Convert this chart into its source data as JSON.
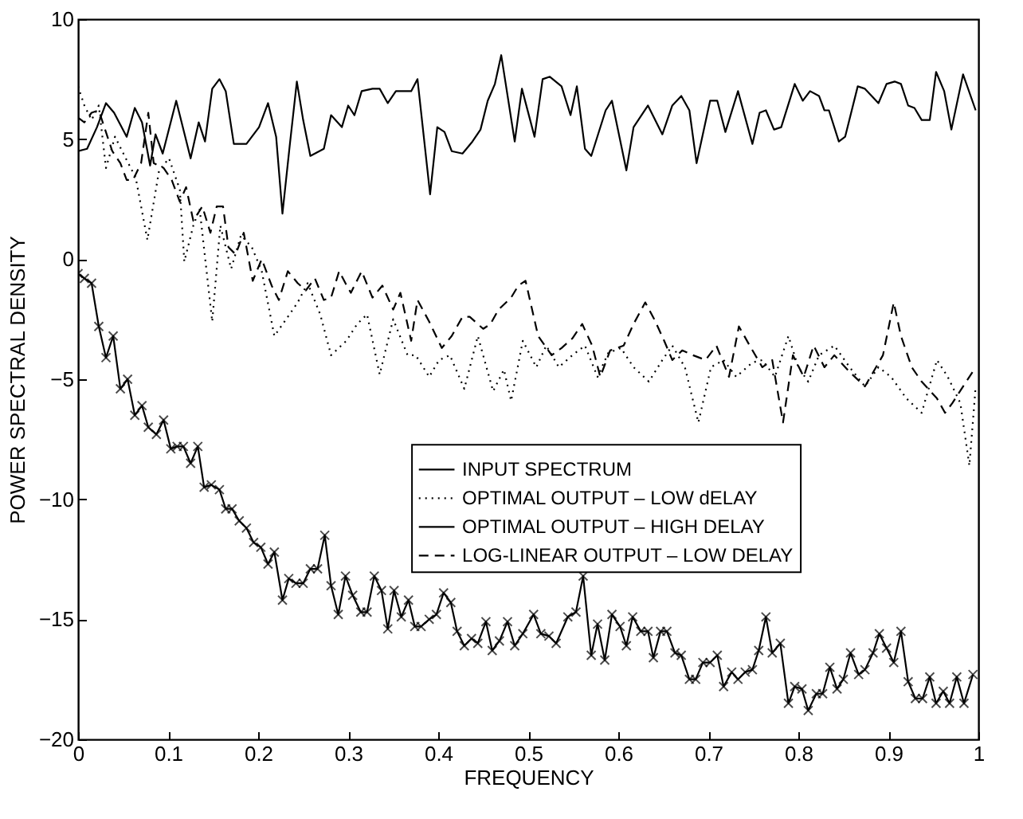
{
  "chart_data": {
    "type": "line",
    "xlabel": "FREQUENCY",
    "ylabel": "POWER SPECTRAL DENSITY",
    "xlim": [
      0,
      1
    ],
    "ylim": [
      -20,
      10
    ],
    "xticks": [
      0,
      0.1,
      0.2,
      0.3,
      0.4,
      0.5,
      0.6,
      0.7,
      0.8,
      0.9,
      1
    ],
    "yticks": [
      -20,
      -15,
      -10,
      -5,
      0,
      5,
      10
    ],
    "grid": false,
    "legend": "right",
    "series": [
      {
        "name": "INPUT SPECTRUM",
        "color": "#000000",
        "line_style": "solid",
        "marker": "none",
        "x": [
          0,
          0.01,
          0.021,
          0.031,
          0.04,
          0.054,
          0.063,
          0.071,
          0.08,
          0.086,
          0.094,
          0.109,
          0.125,
          0.134,
          0.141,
          0.149,
          0.157,
          0.164,
          0.173,
          0.187,
          0.201,
          0.211,
          0.22,
          0.227,
          0.235,
          0.243,
          0.25,
          0.258,
          0.273,
          0.281,
          0.293,
          0.3,
          0.307,
          0.315,
          0.327,
          0.335,
          0.344,
          0.353,
          0.37,
          0.377,
          0.391,
          0.399,
          0.407,
          0.415,
          0.427,
          0.438,
          0.447,
          0.455,
          0.463,
          0.47,
          0.485,
          0.493,
          0.507,
          0.516,
          0.524,
          0.537,
          0.547,
          0.554,
          0.563,
          0.57,
          0.586,
          0.593,
          0.609,
          0.617,
          0.633,
          0.649,
          0.66,
          0.67,
          0.679,
          0.687,
          0.702,
          0.71,
          0.719,
          0.733,
          0.749,
          0.757,
          0.764,
          0.773,
          0.781,
          0.796,
          0.805,
          0.813,
          0.823,
          0.829,
          0.834,
          0.845,
          0.852,
          0.866,
          0.874,
          0.889,
          0.898,
          0.907,
          0.914,
          0.922,
          0.929,
          0.937,
          0.946,
          0.953,
          0.962,
          0.97,
          0.983,
          0.997
        ],
        "values": [
          4.5,
          4.6,
          5.5,
          6.5,
          6.1,
          5.1,
          6.3,
          5.7,
          3.9,
          5.2,
          4.4,
          6.6,
          4.2,
          5.7,
          4.9,
          7.1,
          7.5,
          7.0,
          4.8,
          4.8,
          5.5,
          6.5,
          5.1,
          1.9,
          4.7,
          7.4,
          5.8,
          4.3,
          4.6,
          6.0,
          5.5,
          6.4,
          6.0,
          7.0,
          7.1,
          7.1,
          6.5,
          7.0,
          7.0,
          7.5,
          2.7,
          5.5,
          5.3,
          4.5,
          4.4,
          4.9,
          5.4,
          6.6,
          7.3,
          8.5,
          4.9,
          7.1,
          5.1,
          7.5,
          7.6,
          7.2,
          6.0,
          7.2,
          4.6,
          4.3,
          6.2,
          6.6,
          3.7,
          5.5,
          6.4,
          5.2,
          6.4,
          6.8,
          6.2,
          4.0,
          6.6,
          6.6,
          5.3,
          7.0,
          4.8,
          6.1,
          6.2,
          5.4,
          5.5,
          7.3,
          6.6,
          7.0,
          6.8,
          6.2,
          6.2,
          4.9,
          5.1,
          7.2,
          7.1,
          6.5,
          7.3,
          7.4,
          7.3,
          6.4,
          6.3,
          5.8,
          5.8,
          7.8,
          7.0,
          5.4,
          7.7,
          6.2
        ]
      },
      {
        "name": "OPTIMAL OUTPUT – LOW dELAY",
        "color": "#000000",
        "line_style": "dotted",
        "marker": "none",
        "x": [
          0,
          0.007,
          0.015,
          0.023,
          0.031,
          0.041,
          0.053,
          0.064,
          0.077,
          0.09,
          0.101,
          0.113,
          0.118,
          0.128,
          0.135,
          0.149,
          0.158,
          0.17,
          0.181,
          0.193,
          0.204,
          0.218,
          0.233,
          0.244,
          0.255,
          0.269,
          0.281,
          0.298,
          0.31,
          0.321,
          0.335,
          0.35,
          0.366,
          0.375,
          0.39,
          0.401,
          0.413,
          0.429,
          0.444,
          0.461,
          0.473,
          0.481,
          0.494,
          0.509,
          0.52,
          0.534,
          0.549,
          0.563,
          0.577,
          0.589,
          0.603,
          0.617,
          0.634,
          0.649,
          0.66,
          0.674,
          0.689,
          0.703,
          0.717,
          0.731,
          0.749,
          0.76,
          0.774,
          0.789,
          0.8,
          0.811,
          0.823,
          0.84,
          0.857,
          0.874,
          0.889,
          0.903,
          0.92,
          0.937,
          0.954,
          0.966,
          0.98,
          0.99,
          0.997
        ],
        "values": [
          7.2,
          6.4,
          5.8,
          6.4,
          3.8,
          5.1,
          4.2,
          3.4,
          0.8,
          3.7,
          4.2,
          2.9,
          -0.1,
          1.4,
          2.1,
          -2.6,
          1.4,
          -0.4,
          1.0,
          0.5,
          -0.5,
          -3.2,
          -2.4,
          -1.8,
          -1.0,
          -2.3,
          -4.0,
          -3.4,
          -2.7,
          -2.3,
          -4.8,
          -2.5,
          -4.0,
          -4.0,
          -4.9,
          -4.2,
          -4.0,
          -5.4,
          -3.2,
          -5.5,
          -4.6,
          -5.9,
          -3.4,
          -4.5,
          -3.6,
          -4.5,
          -4.0,
          -3.6,
          -4.9,
          -3.9,
          -3.7,
          -4.5,
          -5.1,
          -4.2,
          -3.6,
          -4.5,
          -6.8,
          -4.5,
          -4.2,
          -4.9,
          -4.3,
          -4.2,
          -4.9,
          -3.2,
          -4.5,
          -5.1,
          -4.0,
          -3.6,
          -4.5,
          -5.3,
          -4.5,
          -4.9,
          -5.8,
          -6.4,
          -4.2,
          -4.9,
          -6.0,
          -8.6,
          -5.3
        ]
      },
      {
        "name": "OPTIMAL OUTPUT – HIGH DELAY",
        "color": "#000000",
        "line_style": "solid",
        "marker": "cross",
        "x": [
          0,
          0.007,
          0.015,
          0.023,
          0.031,
          0.039,
          0.047,
          0.055,
          0.063,
          0.071,
          0.078,
          0.087,
          0.095,
          0.103,
          0.11,
          0.117,
          0.125,
          0.133,
          0.14,
          0.148,
          0.157,
          0.164,
          0.171,
          0.179,
          0.187,
          0.195,
          0.203,
          0.211,
          0.218,
          0.227,
          0.234,
          0.242,
          0.25,
          0.258,
          0.266,
          0.274,
          0.281,
          0.289,
          0.297,
          0.305,
          0.314,
          0.321,
          0.329,
          0.337,
          0.344,
          0.351,
          0.359,
          0.367,
          0.374,
          0.381,
          0.39,
          0.398,
          0.406,
          0.414,
          0.421,
          0.429,
          0.437,
          0.444,
          0.453,
          0.46,
          0.468,
          0.477,
          0.485,
          0.494,
          0.506,
          0.514,
          0.523,
          0.531,
          0.544,
          0.553,
          0.561,
          0.57,
          0.577,
          0.585,
          0.593,
          0.602,
          0.609,
          0.616,
          0.625,
          0.633,
          0.639,
          0.647,
          0.654,
          0.663,
          0.67,
          0.679,
          0.686,
          0.694,
          0.702,
          0.71,
          0.717,
          0.726,
          0.733,
          0.741,
          0.749,
          0.756,
          0.764,
          0.771,
          0.78,
          0.789,
          0.796,
          0.804,
          0.811,
          0.82,
          0.827,
          0.835,
          0.843,
          0.85,
          0.858,
          0.867,
          0.874,
          0.883,
          0.89,
          0.898,
          0.906,
          0.914,
          0.922,
          0.93,
          0.938,
          0.946,
          0.953,
          0.961,
          0.968,
          0.976,
          0.984,
          0.994
        ],
        "values": [
          -0.6,
          -0.8,
          -1.0,
          -2.8,
          -4.1,
          -3.2,
          -5.4,
          -5.0,
          -6.5,
          -6.1,
          -7.0,
          -7.3,
          -6.7,
          -7.9,
          -7.8,
          -7.8,
          -8.5,
          -7.8,
          -9.5,
          -9.4,
          -9.6,
          -10.4,
          -10.4,
          -10.9,
          -11.2,
          -11.8,
          -12.0,
          -12.7,
          -12.2,
          -14.2,
          -13.3,
          -13.5,
          -13.5,
          -12.9,
          -12.9,
          -11.5,
          -13.6,
          -14.8,
          -13.2,
          -14.0,
          -14.7,
          -14.7,
          -13.2,
          -13.8,
          -15.4,
          -13.8,
          -14.9,
          -14.2,
          -15.3,
          -15.3,
          -15.0,
          -14.8,
          -13.9,
          -14.3,
          -15.5,
          -16.1,
          -15.8,
          -16.0,
          -15.1,
          -16.3,
          -15.9,
          -15.1,
          -16.1,
          -15.6,
          -14.8,
          -15.6,
          -15.7,
          -16.0,
          -14.9,
          -14.7,
          -13.2,
          -16.5,
          -15.2,
          -16.7,
          -14.8,
          -15.3,
          -16.1,
          -14.9,
          -15.5,
          -15.5,
          -16.6,
          -15.5,
          -15.5,
          -16.4,
          -16.5,
          -17.5,
          -17.5,
          -16.8,
          -16.8,
          -16.5,
          -17.8,
          -17.2,
          -17.5,
          -17.2,
          -17.1,
          -16.3,
          -14.9,
          -16.4,
          -16.0,
          -18.5,
          -17.8,
          -17.9,
          -18.8,
          -18.1,
          -18.1,
          -17.0,
          -17.9,
          -17.5,
          -16.4,
          -17.3,
          -17.1,
          -16.4,
          -15.6,
          -16.2,
          -16.8,
          -15.5,
          -17.6,
          -18.3,
          -18.3,
          -17.4,
          -18.5,
          -18.0,
          -18.5,
          -17.4,
          -18.5,
          -17.3
        ]
      },
      {
        "name": "LOG-LINEAR OUTPUT – LOW DELAY",
        "color": "#000000",
        "line_style": "dashed",
        "marker": "none",
        "x": [
          0,
          0.007,
          0.015,
          0.023,
          0.03,
          0.038,
          0.047,
          0.054,
          0.061,
          0.07,
          0.078,
          0.084,
          0.095,
          0.104,
          0.113,
          0.12,
          0.128,
          0.138,
          0.147,
          0.154,
          0.161,
          0.167,
          0.175,
          0.184,
          0.194,
          0.204,
          0.215,
          0.223,
          0.233,
          0.244,
          0.253,
          0.263,
          0.273,
          0.281,
          0.29,
          0.297,
          0.303,
          0.315,
          0.327,
          0.338,
          0.35,
          0.358,
          0.37,
          0.377,
          0.39,
          0.404,
          0.415,
          0.427,
          0.435,
          0.45,
          0.458,
          0.467,
          0.481,
          0.489,
          0.497,
          0.511,
          0.526,
          0.537,
          0.549,
          0.56,
          0.571,
          0.58,
          0.591,
          0.606,
          0.617,
          0.63,
          0.64,
          0.651,
          0.66,
          0.671,
          0.683,
          0.697,
          0.709,
          0.723,
          0.734,
          0.746,
          0.76,
          0.771,
          0.783,
          0.794,
          0.806,
          0.817,
          0.829,
          0.84,
          0.857,
          0.874,
          0.894,
          0.906,
          0.914,
          0.926,
          0.937,
          0.954,
          0.963,
          0.971,
          0.983,
          0.997
        ],
        "values": [
          5.9,
          5.7,
          6.1,
          6.2,
          5.4,
          4.5,
          4.0,
          3.3,
          3.3,
          4.0,
          6.1,
          4.0,
          3.8,
          3.3,
          2.4,
          3.0,
          1.6,
          2.2,
          1.1,
          2.2,
          2.2,
          0.5,
          0.2,
          1.1,
          -0.9,
          0.0,
          -1.1,
          -1.7,
          -0.5,
          -1.0,
          -1.3,
          -0.8,
          -1.7,
          -1.6,
          -0.5,
          -1.0,
          -1.4,
          -0.5,
          -1.6,
          -1.1,
          -2.1,
          -1.4,
          -3.4,
          -1.7,
          -2.6,
          -3.7,
          -3.2,
          -2.4,
          -2.4,
          -2.9,
          -2.7,
          -2.1,
          -1.6,
          -1.1,
          -0.9,
          -3.2,
          -4.0,
          -3.7,
          -3.3,
          -2.7,
          -3.6,
          -4.9,
          -3.8,
          -3.6,
          -2.7,
          -1.8,
          -2.5,
          -3.4,
          -4.2,
          -3.8,
          -4.0,
          -4.2,
          -3.6,
          -4.9,
          -2.8,
          -3.6,
          -4.5,
          -4.2,
          -6.8,
          -4.0,
          -4.9,
          -3.6,
          -4.5,
          -4.0,
          -4.7,
          -5.3,
          -4.0,
          -1.8,
          -3.2,
          -4.5,
          -5.1,
          -5.8,
          -6.4,
          -6.0,
          -5.3,
          -4.5
        ]
      }
    ]
  }
}
